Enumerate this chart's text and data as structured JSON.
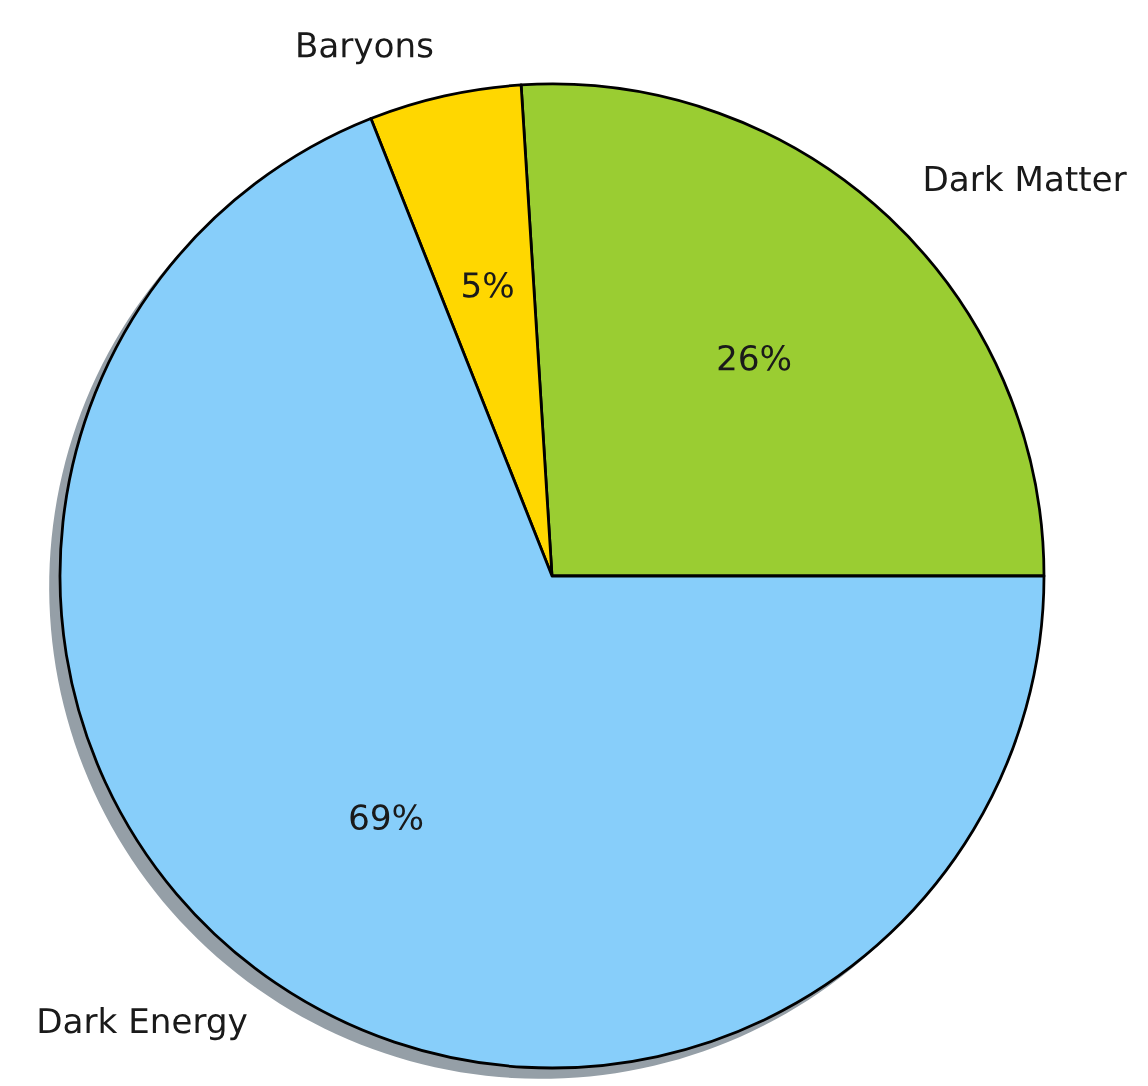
{
  "chart_data": {
    "type": "pie",
    "categories": [
      "Dark Matter",
      "Baryons",
      "Dark Energy"
    ],
    "values": [
      26,
      5,
      69
    ],
    "colors": [
      "#9acd32",
      "#ffd700",
      "#87cefa"
    ],
    "value_labels": [
      "26%",
      "5%",
      "69%"
    ]
  }
}
